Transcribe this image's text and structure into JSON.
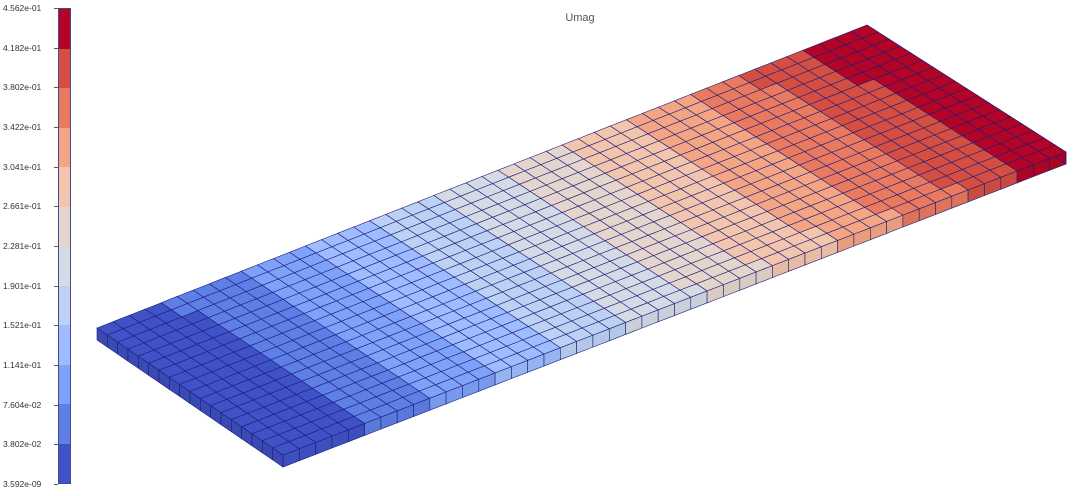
{
  "plot": {
    "title": "Umag"
  },
  "legend": {
    "tick_labels": [
      "4.562e-01",
      "4.182e-01",
      "3.802e-01",
      "3.422e-01",
      "3.041e-01",
      "2.661e-01",
      "2.281e-01",
      "1.901e-01",
      "1.521e-01",
      "1.141e-01",
      "7.604e-02",
      "3.802e-02",
      "3.592e-09"
    ],
    "colors_top_to_bottom": [
      "#b40426",
      "#d44e41",
      "#e97a5f",
      "#f4a583",
      "#f4c5ad",
      "#e6d5cc",
      "#d5dbe5",
      "#bcd1f3",
      "#9ebcff",
      "#7ea2f9",
      "#5e7fe6",
      "#3f53c6"
    ]
  },
  "mesh": {
    "columns": 48,
    "rows": 18,
    "scalar_min": 3.592e-09,
    "scalar_max": 0.4562,
    "edge_color": "#1c1c7a"
  }
}
